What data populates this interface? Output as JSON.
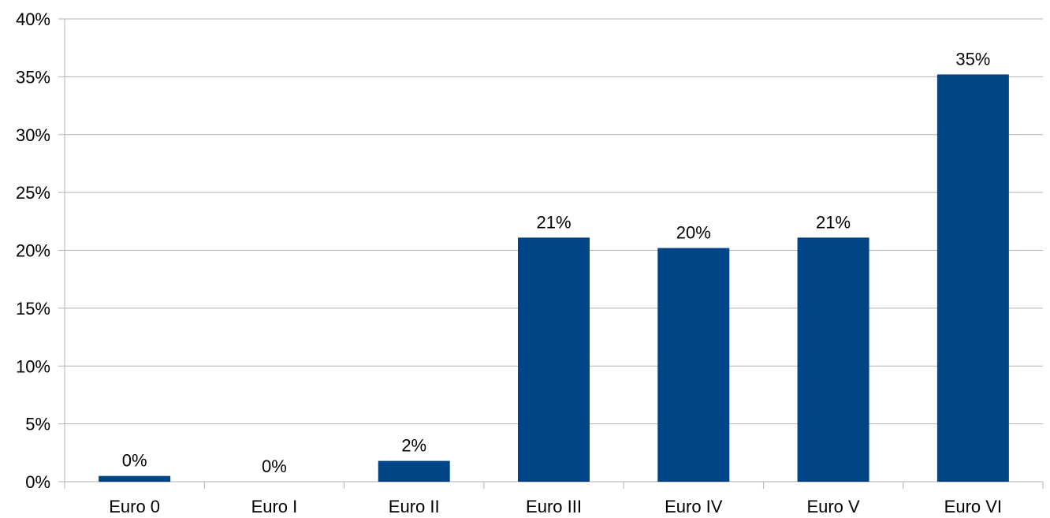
{
  "chart_data": {
    "type": "bar",
    "categories": [
      "Euro 0",
      "Euro I",
      "Euro II",
      "Euro III",
      "Euro IV",
      "Euro V",
      "Euro VI"
    ],
    "values": [
      0.5,
      0.0,
      1.8,
      21.1,
      20.2,
      21.1,
      35.2
    ],
    "data_labels": [
      "0%",
      "0%",
      "2%",
      "21%",
      "20%",
      "21%",
      "35%"
    ],
    "ylim": [
      0,
      40
    ],
    "yticks": [
      0,
      5,
      10,
      15,
      20,
      25,
      30,
      35,
      40
    ],
    "ytick_labels": [
      "0%",
      "5%",
      "10%",
      "15%",
      "20%",
      "25%",
      "30%",
      "35%",
      "40%"
    ],
    "grid": true,
    "legend": "none",
    "title": "",
    "xlabel": "",
    "ylabel": "",
    "bar_color": "#004586",
    "grid_color": "#b3b3b3"
  }
}
